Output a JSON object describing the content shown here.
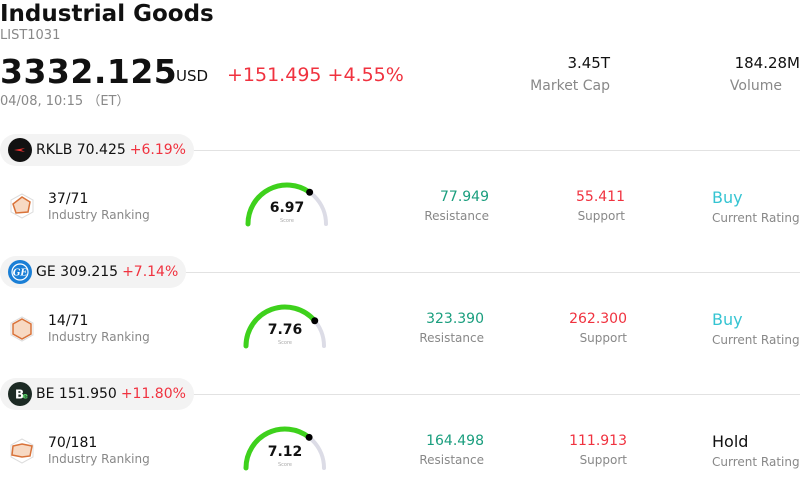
{
  "header": {
    "title": "Industrial Goods",
    "code": "LIST1031",
    "price": "3332.125",
    "currency": "USD",
    "change": "+151.495 +4.55%",
    "time": "04/08, 10:15 （ET）",
    "market_cap_value": "3.45T",
    "market_cap_label": "Market Cap",
    "volume_value": "184.28M",
    "volume_label": "Volume"
  },
  "colors": {
    "up": "#f0323f",
    "green": "#1a9e7e",
    "buy": "#35c4d2",
    "gauge": "#3ed11c"
  },
  "stocks": [
    {
      "ticker": "RKLB",
      "price": "70.425",
      "pct": "+6.19%",
      "logo_icon": "rocketlab-logo-icon",
      "rank": "37/71",
      "rank_label": "Industry Ranking",
      "score": "6.97",
      "score_label": "Score",
      "score_fraction": 0.697,
      "resistance": "77.949",
      "resistance_label": "Resistance",
      "support": "55.411",
      "support_label": "Support",
      "rating": "Buy",
      "rating_label": "Current Rating"
    },
    {
      "ticker": "GE",
      "price": "309.215",
      "pct": "+7.14%",
      "logo_icon": "ge-logo-icon",
      "rank": "14/71",
      "rank_label": "Industry Ranking",
      "score": "7.76",
      "score_label": "Score",
      "score_fraction": 0.776,
      "resistance": "323.390",
      "resistance_label": "Resistance",
      "support": "262.300",
      "support_label": "Support",
      "rating": "Buy",
      "rating_label": "Current Rating"
    },
    {
      "ticker": "BE",
      "price": "151.950",
      "pct": "+11.80%",
      "logo_icon": "bloom-energy-logo-icon",
      "rank": "70/181",
      "rank_label": "Industry Ranking",
      "score": "7.12",
      "score_label": "Score",
      "score_fraction": 0.712,
      "resistance": "164.498",
      "resistance_label": "Resistance",
      "support": "111.913",
      "support_label": "Support",
      "rating": "Hold",
      "rating_label": "Current Rating"
    }
  ]
}
